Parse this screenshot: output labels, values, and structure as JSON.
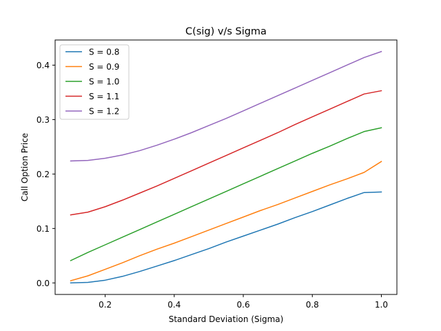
{
  "chart_data": {
    "type": "line",
    "title": "C(sig) v/s Sigma",
    "xlabel": "Standard Deviation (Sigma)",
    "ylabel": "Call Option Price",
    "xlim": [
      0.055,
      1.045
    ],
    "ylim": [
      -0.0212,
      0.4462
    ],
    "xticks": [
      0.2,
      0.4,
      0.6,
      0.8,
      1.0
    ],
    "xtick_labels": [
      "0.2",
      "0.4",
      "0.6",
      "0.8",
      "1.0"
    ],
    "yticks": [
      0.0,
      0.1,
      0.2,
      0.3,
      0.4
    ],
    "ytick_labels": [
      "0.0",
      "0.1",
      "0.2",
      "0.3",
      "0.4"
    ],
    "grid": false,
    "legend_position": "top-left",
    "x": [
      0.1,
      0.15,
      0.2,
      0.25,
      0.3,
      0.35,
      0.4,
      0.45,
      0.5,
      0.55,
      0.6,
      0.65,
      0.7,
      0.75,
      0.8,
      0.85,
      0.9,
      0.95,
      1.0
    ],
    "series": [
      {
        "name": "S = 0.8",
        "color": "#1f77b4",
        "values": [
          0.0,
          0.001,
          0.005,
          0.012,
          0.021,
          0.031,
          0.041,
          0.052,
          0.063,
          0.075,
          0.086,
          0.097,
          0.108,
          0.12,
          0.131,
          0.143,
          0.155,
          0.166,
          0.167
        ]
      },
      {
        "name": "S = 0.9",
        "color": "#ff7f0e",
        "values": [
          0.004,
          0.013,
          0.025,
          0.037,
          0.05,
          0.062,
          0.073,
          0.085,
          0.097,
          0.109,
          0.121,
          0.133,
          0.144,
          0.156,
          0.168,
          0.18,
          0.191,
          0.203,
          0.223
        ]
      },
      {
        "name": "S = 1.0",
        "color": "#2ca02c",
        "values": [
          0.041,
          0.056,
          0.07,
          0.084,
          0.098,
          0.112,
          0.126,
          0.14,
          0.154,
          0.168,
          0.182,
          0.196,
          0.21,
          0.224,
          0.238,
          0.251,
          0.265,
          0.278,
          0.285
        ]
      },
      {
        "name": "S = 1.1",
        "color": "#d62728",
        "values": [
          0.125,
          0.13,
          0.14,
          0.152,
          0.165,
          0.178,
          0.192,
          0.206,
          0.22,
          0.234,
          0.248,
          0.262,
          0.276,
          0.291,
          0.305,
          0.319,
          0.333,
          0.347,
          0.353
        ]
      },
      {
        "name": "S = 1.2",
        "color": "#9467bd",
        "values": [
          0.224,
          0.225,
          0.229,
          0.235,
          0.243,
          0.253,
          0.264,
          0.276,
          0.289,
          0.302,
          0.316,
          0.33,
          0.344,
          0.358,
          0.372,
          0.386,
          0.4,
          0.414,
          0.425
        ]
      }
    ]
  }
}
